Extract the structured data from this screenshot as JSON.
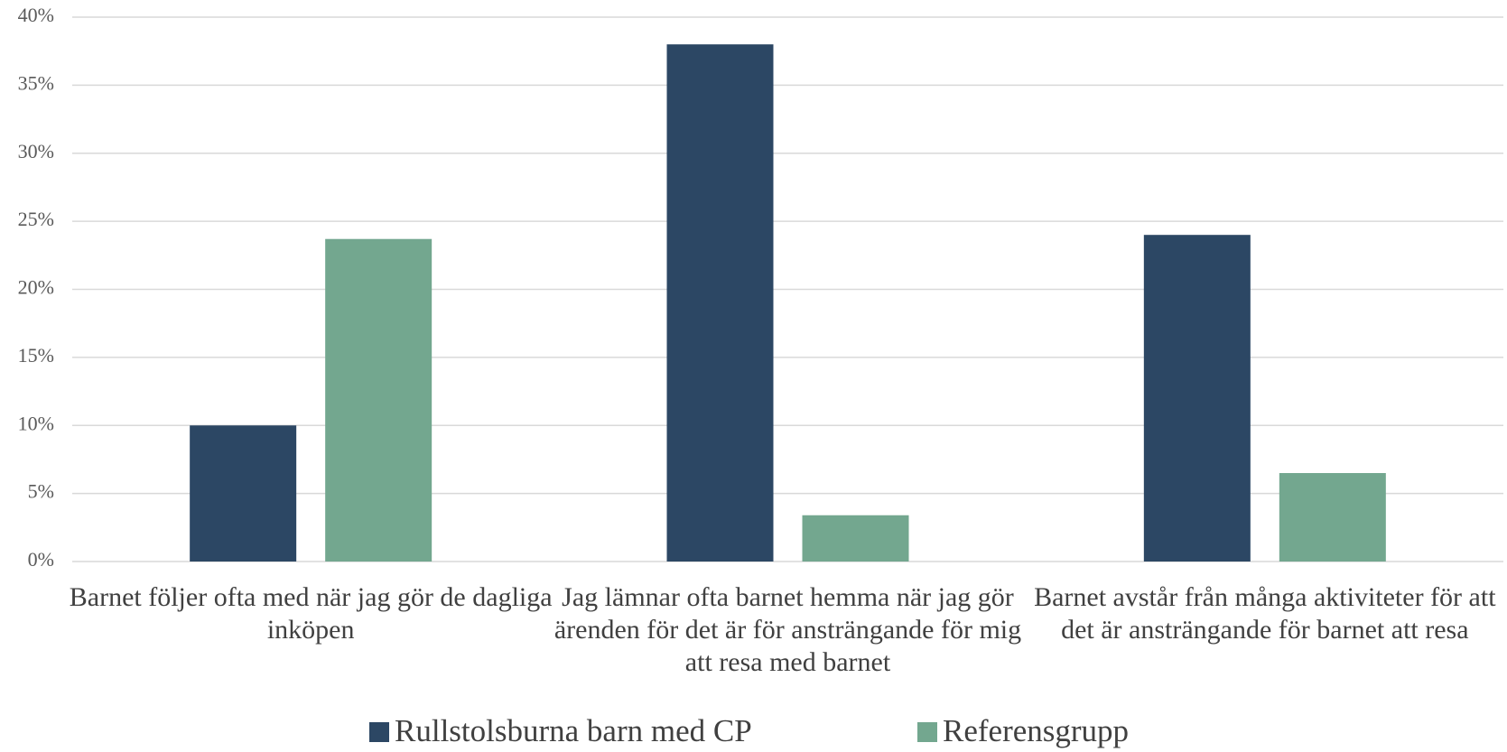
{
  "chart_data": {
    "type": "bar",
    "categories": [
      "Barnet följer ofta med när jag gör de dagliga inköpen",
      "Jag lämnar ofta barnet hemma när jag gör ärenden för det är för ansträngande för mig att resa med barnet",
      "Barnet avstår från många aktiviteter för att det är ansträngande för barnet att resa"
    ],
    "series": [
      {
        "name": "Rullstolsburna barn med CP",
        "color": "#2c4764",
        "values": [
          10,
          38,
          24
        ]
      },
      {
        "name": "Referensgrupp",
        "color": "#73a78f",
        "values": [
          23.7,
          3.4,
          6.5
        ]
      }
    ],
    "ylim": [
      0,
      40
    ],
    "yticks": [
      {
        "value": 0,
        "label": "0%"
      },
      {
        "value": 5,
        "label": "5%"
      },
      {
        "value": 10,
        "label": "10%"
      },
      {
        "value": 15,
        "label": "15%"
      },
      {
        "value": 20,
        "label": "20%"
      },
      {
        "value": 25,
        "label": "25%"
      },
      {
        "value": 30,
        "label": "30%"
      },
      {
        "value": 35,
        "label": "35%"
      },
      {
        "value": 40,
        "label": "40%"
      }
    ],
    "grid": true,
    "legend": "bottom"
  }
}
